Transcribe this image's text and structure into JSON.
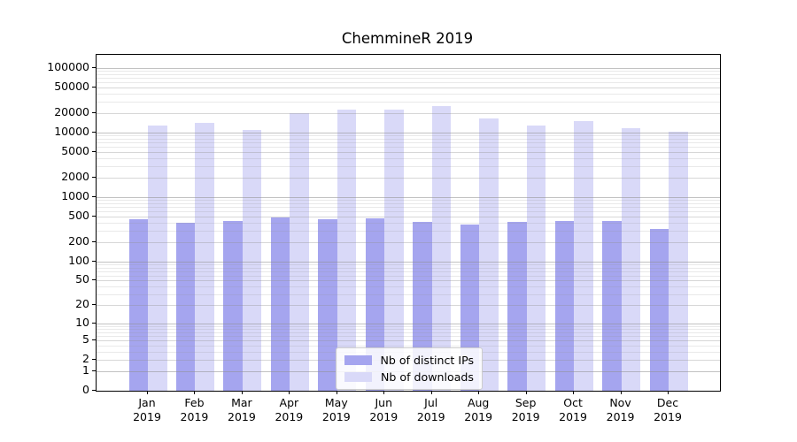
{
  "title": "ChemmineR 2019",
  "chart_data": {
    "type": "bar",
    "title": "ChemmineR 2019",
    "yscale": "log10(1+x)",
    "ylim": [
      0,
      160000
    ],
    "grid": true,
    "legend_position": "lower center",
    "y_tick_values": [
      0,
      1,
      2,
      5,
      10,
      20,
      50,
      100,
      200,
      500,
      1000,
      2000,
      5000,
      10000,
      20000,
      50000,
      100000
    ],
    "categories": [
      "Jan 2019",
      "Feb 2019",
      "Mar 2019",
      "Apr 2019",
      "May 2019",
      "Jun 2019",
      "Jul 2019",
      "Aug 2019",
      "Sep 2019",
      "Oct 2019",
      "Nov 2019",
      "Dec 2019"
    ],
    "series": [
      {
        "name": "Nb of distinct IPs",
        "color": "#a5a5ef",
        "values": [
          448,
          397,
          428,
          489,
          452,
          461,
          415,
          381,
          414,
          429,
          429,
          316
        ]
      },
      {
        "name": "Nb of downloads",
        "color": "#d9d9f8",
        "values": [
          13000,
          14300,
          11100,
          19900,
          23000,
          22700,
          25500,
          16600,
          12800,
          14900,
          11600,
          10400
        ]
      }
    ]
  },
  "colors": {
    "grid_line": "#8f8f8f",
    "spine": "#000000",
    "background": "#ffffff",
    "text": "#000000"
  }
}
